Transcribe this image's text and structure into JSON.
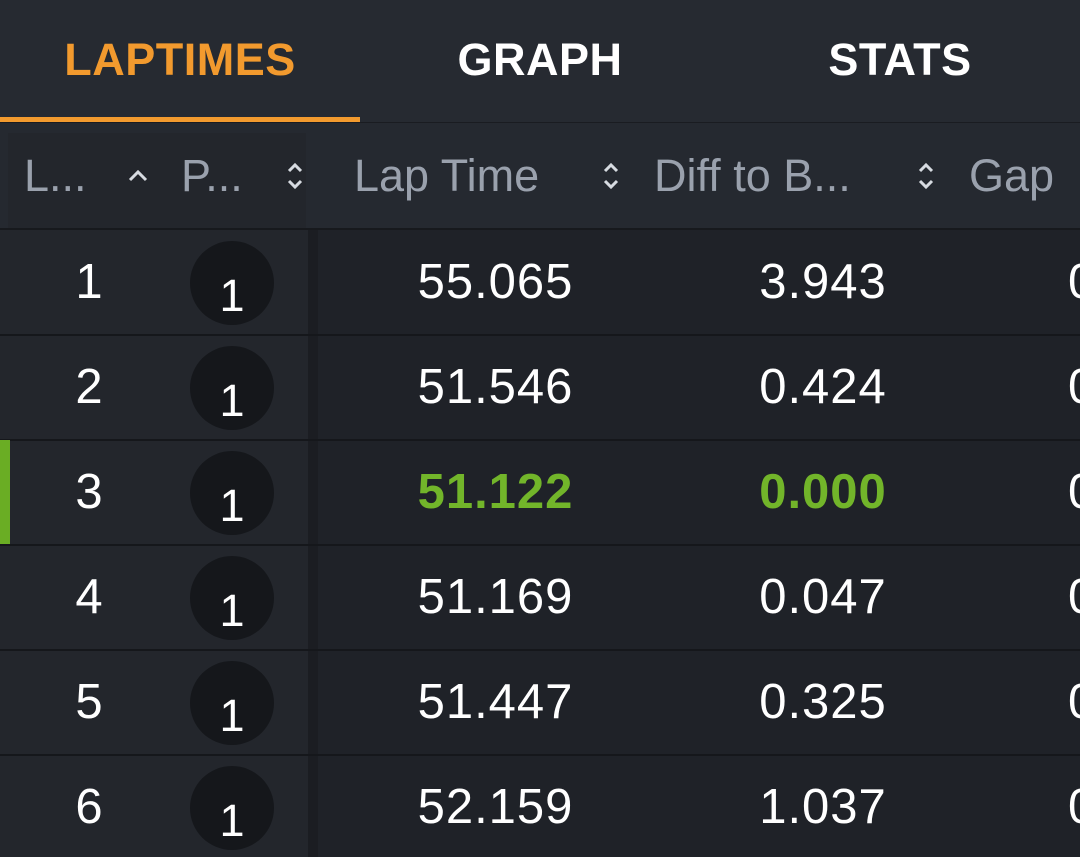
{
  "tabs": [
    {
      "label": "LAPTIMES",
      "active": true
    },
    {
      "label": "GRAPH",
      "active": false
    },
    {
      "label": "STATS",
      "active": false
    }
  ],
  "columns": {
    "lap": "L...",
    "position": "P...",
    "lap_time": "Lap Time",
    "diff_to_best": "Diff to B...",
    "gap": "Gap"
  },
  "sort": {
    "column": "lap",
    "direction": "ascending"
  },
  "rows": [
    {
      "lap": "1",
      "position": "1",
      "lap_time": "55.065",
      "diff": "3.943",
      "gap": "0",
      "best": false
    },
    {
      "lap": "2",
      "position": "1",
      "lap_time": "51.546",
      "diff": "0.424",
      "gap": "0",
      "best": false
    },
    {
      "lap": "3",
      "position": "1",
      "lap_time": "51.122",
      "diff": "0.000",
      "gap": "0",
      "best": true
    },
    {
      "lap": "4",
      "position": "1",
      "lap_time": "51.169",
      "diff": "0.047",
      "gap": "0",
      "best": false
    },
    {
      "lap": "5",
      "position": "1",
      "lap_time": "51.447",
      "diff": "0.325",
      "gap": "0",
      "best": false
    },
    {
      "lap": "6",
      "position": "1",
      "lap_time": "52.159",
      "diff": "1.037",
      "gap": "0",
      "best": false
    }
  ],
  "colors": {
    "accent": "#f29a2e",
    "best_lap": "#72b52a",
    "background": "#1f2228",
    "tab_bar": "#262a31"
  }
}
